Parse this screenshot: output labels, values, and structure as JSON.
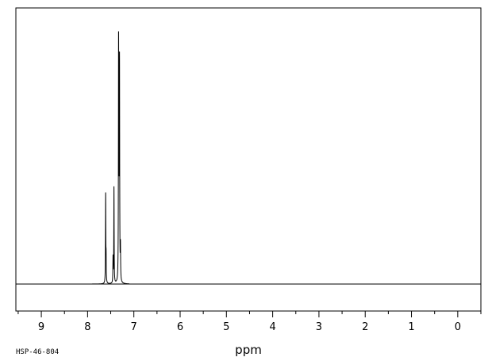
{
  "chart_data": {
    "type": "line",
    "title": "",
    "xlabel": "ppm",
    "ylabel": "",
    "xlim": [
      9.55,
      -0.5
    ],
    "x_reversed": true,
    "ylim": [
      0,
      1.0
    ],
    "x_ticks": [
      9,
      8,
      7,
      6,
      5,
      4,
      3,
      2,
      1,
      0
    ],
    "x_tick_labels": [
      "9",
      "8",
      "7",
      "6",
      "5",
      "4",
      "3",
      "2",
      "1",
      "0"
    ],
    "x_minor_ticks": [
      9.5,
      8.5,
      7.5,
      6.5,
      5.5,
      4.5,
      3.5,
      2.5,
      1.5,
      0.5,
      -0.5
    ],
    "grid": false,
    "legend": "none",
    "peaks": [
      {
        "ppm": 7.61,
        "height": 0.35
      },
      {
        "ppm": 7.6,
        "height": 0.09
      },
      {
        "ppm": 7.43,
        "height": 0.38
      },
      {
        "ppm": 7.45,
        "height": 0.1
      },
      {
        "ppm": 7.33,
        "height": 1.0
      },
      {
        "ppm": 7.31,
        "height": 0.85
      },
      {
        "ppm": 7.32,
        "height": 0.2
      },
      {
        "ppm": 7.29,
        "height": 0.13
      }
    ],
    "peak_width": 0.004,
    "spectrum_code": "HSP-46-804"
  }
}
